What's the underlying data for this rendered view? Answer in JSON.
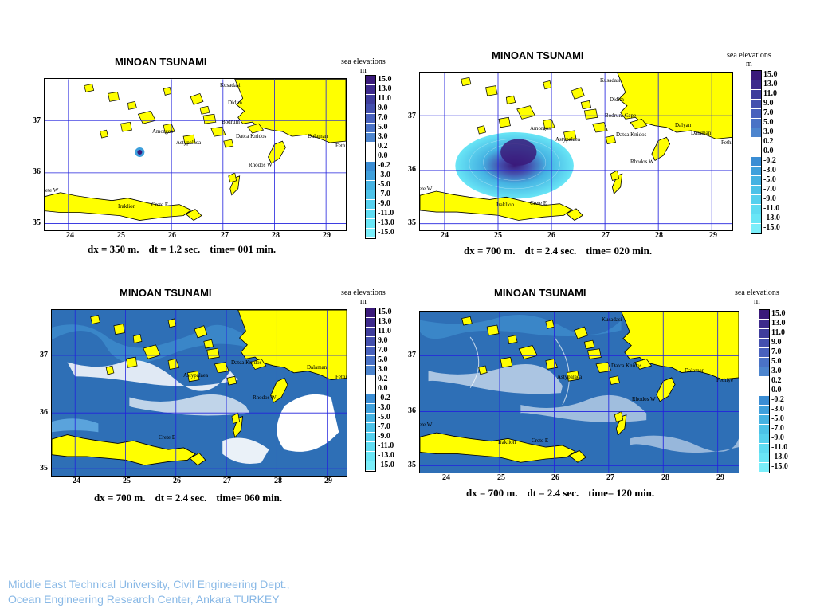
{
  "title": "MINOAN TSUNAMI",
  "legend": {
    "label_line1": "sea elevations",
    "label_line2": "m",
    "values": [
      "15.0",
      "13.0",
      "11.0",
      "9.0",
      "7.0",
      "5.0",
      "3.0",
      "0.2",
      "0.0",
      "-0.2",
      "-3.0",
      "-5.0",
      "-7.0",
      "-9.0",
      "-11.0",
      "-13.0",
      "-15.0"
    ],
    "colors": [
      "#3a1a7a",
      "#3d2a8c",
      "#3f3d9c",
      "#4450ae",
      "#4861bd",
      "#4a72c6",
      "#4d85ce",
      "#ffffff",
      "#ffffff",
      "#3a8dd4",
      "#3fa0dc",
      "#45b2e2",
      "#4cc2e8",
      "#55d0ee",
      "#5fdcf2",
      "#69e6f6",
      "#7aeefa"
    ]
  },
  "axes": {
    "x_ticks": [
      "24",
      "25",
      "26",
      "27",
      "28",
      "29"
    ],
    "y_ticks": [
      "37",
      "36",
      "35"
    ]
  },
  "places": [
    "Kusadasi",
    "Didim",
    "Bodrum",
    "Bodrum Cape",
    "Datca",
    "Datca Knidos",
    "Dalyan",
    "Dalaman",
    "Fethiye",
    "Amorgos",
    "Astypalaea",
    "Rhodos W",
    "Crete W",
    "Crete E",
    "Iraklion"
  ],
  "panels": [
    {
      "id": "p1",
      "dx": "dx = 350 m.",
      "dt": "dt = 1.2 sec.",
      "time": "time= 001 min."
    },
    {
      "id": "p2",
      "dx": "dx = 700 m.",
      "dt": "dt = 2.4 sec.",
      "time": "time= 020 min."
    },
    {
      "id": "p3",
      "dx": "dx = 700 m.",
      "dt": "dt = 2.4 sec.",
      "time": "time= 060 min."
    },
    {
      "id": "p4",
      "dx": "dx = 700 m.",
      "dt": "dt = 2.4 sec.",
      "time": "time= 120 min."
    }
  ],
  "footer": {
    "line1": "Middle East Technical University, Civil Engineering Dept.,",
    "line2": "Ocean Engineering Research Center, Ankara TURKEY"
  }
}
